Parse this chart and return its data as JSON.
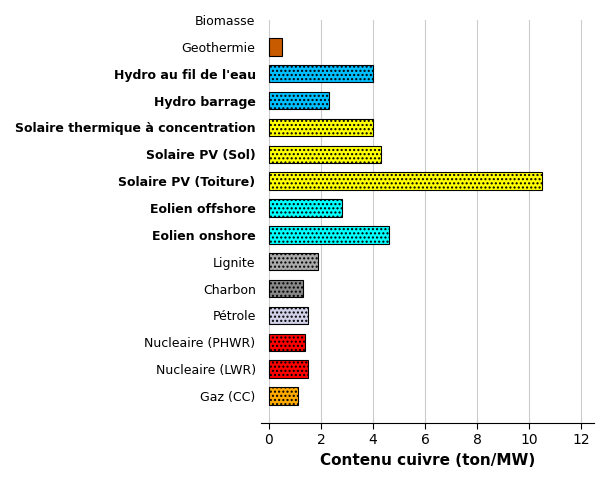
{
  "categories": [
    "Biomasse",
    "Geothermie",
    "Hydro au fil de l'eau",
    "Hydro barrage",
    "Solaire thermique à concentration",
    "Solaire PV (Sol)",
    "Solaire PV (Toiture)",
    "Eolien offshore",
    "Eolien onshore",
    "Lignite",
    "Charbon",
    "Pétrole",
    "Nucleaire (PHWR)",
    "Nucleaire (LWR)",
    "Gaz (CC)"
  ],
  "values": [
    0,
    0.5,
    4.0,
    2.3,
    4.0,
    4.3,
    10.5,
    2.8,
    4.6,
    1.9,
    1.3,
    1.5,
    1.4,
    1.5,
    1.1
  ],
  "bar_colors": [
    "#ffffff",
    "#c85a00",
    "#00bfff",
    "#00bfff",
    "#ffff00",
    "#ffff00",
    "#ffff00",
    "#00ffff",
    "#00ffff",
    "#aaaaaa",
    "#888888",
    "#d0d0e8",
    "#ff0000",
    "#ff0000",
    "#ffaa00"
  ],
  "hatch_patterns": [
    "",
    "",
    "....",
    "....",
    "....",
    "....",
    "....",
    "....",
    "....",
    "....",
    "....",
    "....",
    "....",
    "....",
    "...."
  ],
  "bar_edge_colors": [
    "#000000",
    "#000000",
    "#000000",
    "#000000",
    "#000000",
    "#000000",
    "#000000",
    "#000000",
    "#000000",
    "#000000",
    "#000000",
    "#000000",
    "#000000",
    "#000000",
    "#000000"
  ],
  "bold_labels": [
    "Hydro au fil de l'eau",
    "Hydro barrage",
    "Solaire thermique à concentration",
    "Solaire PV (Sol)",
    "Solaire PV (Toiture)",
    "Eolien offshore",
    "Eolien onshore"
  ],
  "xlabel": "Contenu cuivre (ton/MW)",
  "xlim": [
    -0.3,
    12.5
  ],
  "xticks": [
    0,
    2,
    4,
    6,
    8,
    10,
    12
  ],
  "xlabel_fontsize": 11,
  "tick_fontsize": 10,
  "label_fontsize": 9,
  "background_color": "#ffffff",
  "grid_color": "#cccccc",
  "figsize": [
    6.09,
    4.83
  ],
  "dpi": 100
}
